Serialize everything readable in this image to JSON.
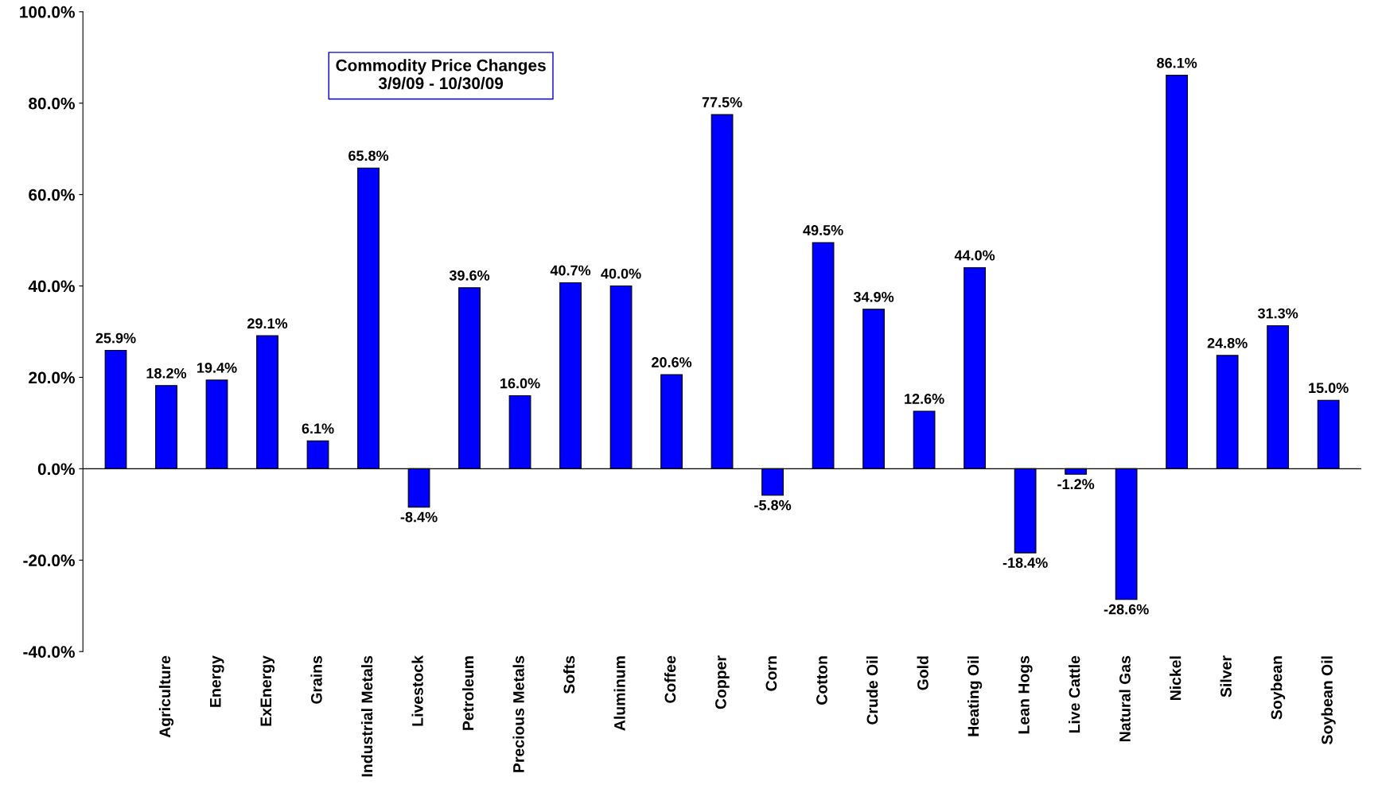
{
  "chart_data": {
    "type": "bar",
    "title": "Commodity Price Changes",
    "subtitle": "3/9/09 - 10/30/09",
    "categories": [
      null,
      "Agriculture",
      "Energy",
      "ExEnergy",
      "Grains",
      "Industrial Metals",
      "Livestock",
      "Petroleum",
      "Precious Metals",
      "Softs",
      "Aluminum",
      "Coffee",
      "Copper",
      "Corn",
      "Cotton",
      "Crude Oil",
      "Gold",
      "Heating Oil",
      "Lean Hogs",
      "Live Cattle",
      "Natural Gas",
      "Nickel",
      "Silver",
      "Soybean",
      "Soybean Oil"
    ],
    "values": [
      25.9,
      18.2,
      19.4,
      29.1,
      6.1,
      65.8,
      -8.4,
      39.6,
      16.0,
      40.7,
      40.0,
      20.6,
      77.5,
      -5.8,
      49.5,
      34.9,
      12.6,
      44.0,
      -18.4,
      -1.2,
      -28.6,
      86.1,
      24.8,
      31.3,
      15.0
    ],
    "value_labels": [
      "25.9%",
      "18.2%",
      "19.4%",
      "29.1%",
      "6.1%",
      "65.8%",
      "-8.4%",
      "39.6%",
      "16.0%",
      "40.7%",
      "40.0%",
      "20.6%",
      "77.5%",
      "-5.8%",
      "49.5%",
      "34.9%",
      "12.6%",
      "44.0%",
      "-18.4%",
      "-1.2%",
      "-28.6%",
      "86.1%",
      "24.8%",
      "31.3%",
      "15.0%"
    ],
    "color": "#0000ff",
    "ylim": [
      -40,
      100
    ],
    "yticks": [
      {
        "value": -40,
        "label": "-40.0%"
      },
      {
        "value": -20,
        "label": "-20.0%"
      },
      {
        "value": 0,
        "label": "0.0%"
      },
      {
        "value": 20,
        "label": "20.0%"
      },
      {
        "value": 40,
        "label": "40.0%"
      },
      {
        "value": 60,
        "label": "60.0%"
      },
      {
        "value": 80,
        "label": "80.0%"
      },
      {
        "value": 100,
        "label": "100.0%"
      }
    ],
    "legend": false
  }
}
